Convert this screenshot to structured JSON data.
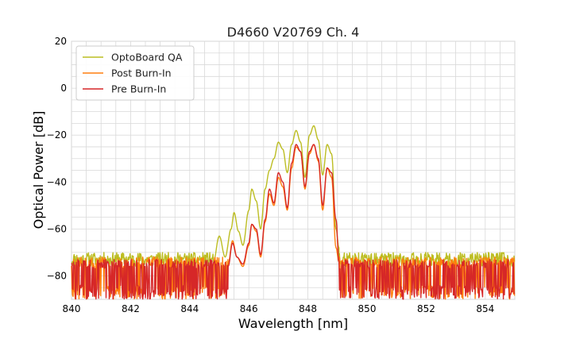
{
  "chart_data": {
    "type": "line",
    "title": "D4660 V20769 Ch. 4",
    "xlabel": "Wavelength [nm]",
    "ylabel": "Optical Power [dB]",
    "xlim": [
      840,
      855
    ],
    "ylim": [
      -90,
      20
    ],
    "xticks": [
      840,
      842,
      844,
      846,
      848,
      850,
      852,
      854
    ],
    "yticks": [
      -80,
      -60,
      -40,
      -20,
      0,
      20
    ],
    "xtick_labels": [
      "840",
      "842",
      "844",
      "846",
      "848",
      "850",
      "852",
      "854"
    ],
    "ytick_labels": [
      "−80",
      "−60",
      "−40",
      "−20",
      "0",
      "20"
    ],
    "grid": true,
    "legend_position": "top-left",
    "noise_floor": {
      "OptoBoard QA": {
        "range": [
          840,
          855
        ],
        "level": [
          -76,
          -70
        ]
      },
      "Post Burn-In": {
        "range": [
          840,
          855
        ],
        "level": [
          -90,
          -72
        ]
      },
      "Pre Burn-In": {
        "range": [
          840,
          855
        ],
        "level": [
          -90,
          -73
        ]
      }
    },
    "series": [
      {
        "name": "OptoBoard QA",
        "color": "#bcbd22",
        "x": [
          844.8,
          845.0,
          845.2,
          845.4,
          845.5,
          845.65,
          845.8,
          846.0,
          846.1,
          846.25,
          846.4,
          846.55,
          846.7,
          846.85,
          847.0,
          847.15,
          847.3,
          847.45,
          847.6,
          847.75,
          847.9,
          848.05,
          848.2,
          848.35,
          848.5,
          848.65,
          848.8,
          848.95,
          849.05
        ],
        "y": [
          -74,
          -63,
          -72,
          -60,
          -53,
          -61,
          -67,
          -52,
          -43,
          -48,
          -60,
          -43,
          -35,
          -30,
          -23,
          -26,
          -36,
          -24,
          -18,
          -23,
          -38,
          -20,
          -16,
          -22,
          -37,
          -24,
          -28,
          -60,
          -68
        ]
      },
      {
        "name": "Post Burn-In",
        "color": "#ff7f0e",
        "x": [
          845.3,
          845.45,
          845.6,
          845.8,
          846.0,
          846.1,
          846.25,
          846.4,
          846.55,
          846.7,
          846.85,
          847.0,
          847.15,
          847.3,
          847.45,
          847.6,
          847.75,
          847.9,
          848.05,
          848.2,
          848.35,
          848.5,
          848.65,
          848.8,
          848.95,
          849.05
        ],
        "y": [
          -75,
          -65,
          -72,
          -76,
          -67,
          -58,
          -61,
          -72,
          -57,
          -45,
          -50,
          -38,
          -42,
          -52,
          -34,
          -25,
          -27,
          -43,
          -28,
          -24,
          -31,
          -52,
          -34,
          -38,
          -68,
          -74
        ]
      },
      {
        "name": "Pre Burn-In",
        "color": "#d62728",
        "x": [
          845.3,
          845.45,
          845.6,
          845.8,
          846.0,
          846.1,
          846.25,
          846.4,
          846.55,
          846.7,
          846.85,
          847.0,
          847.15,
          847.3,
          847.45,
          847.6,
          847.75,
          847.9,
          848.05,
          848.2,
          848.35,
          848.5,
          848.65,
          848.8,
          848.95,
          849.05
        ],
        "y": [
          -76,
          -66,
          -72,
          -75,
          -66,
          -58,
          -60,
          -71,
          -56,
          -43,
          -49,
          -36,
          -40,
          -51,
          -32,
          -24,
          -27,
          -42,
          -27,
          -24,
          -30,
          -50,
          -34,
          -36,
          -56,
          -74
        ]
      }
    ]
  }
}
